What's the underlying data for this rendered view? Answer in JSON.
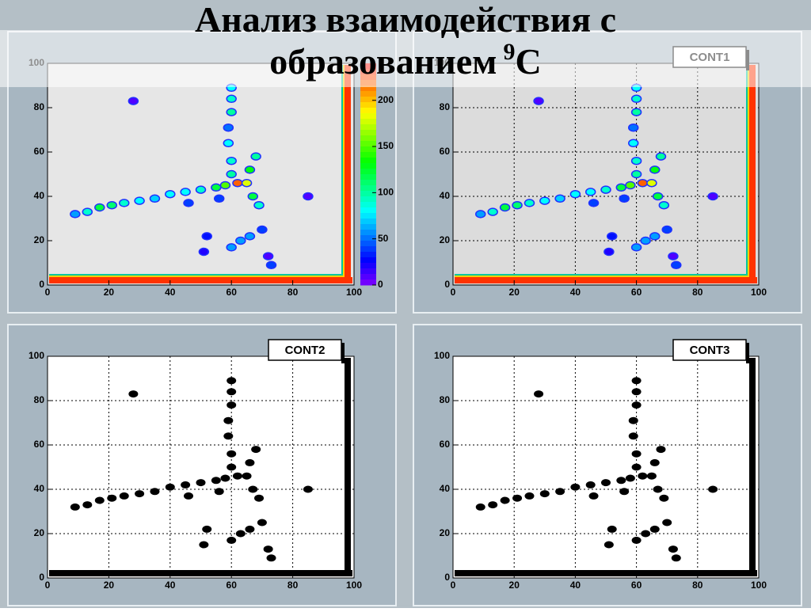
{
  "title": "Анализ взаимодействия с",
  "title_line2": "образованием",
  "title_sup": "9",
  "title_end": "C",
  "chart_data": [
    {
      "type": "contour",
      "background": "#e6e6e6",
      "grid": false,
      "palette": true,
      "xlim": [
        0,
        100
      ],
      "ylim": [
        0,
        100
      ],
      "xticks": [
        0,
        20,
        40,
        60,
        80,
        100
      ],
      "yticks": [
        0,
        20,
        40,
        60,
        80,
        100
      ],
      "zlim": [
        0,
        240
      ],
      "zticks": [
        0,
        50,
        100,
        150,
        200
      ],
      "x": [
        9,
        13,
        17,
        21,
        25,
        30,
        35,
        40,
        45,
        50,
        55,
        58,
        62,
        65,
        60,
        60,
        59,
        60,
        60,
        60,
        59,
        66,
        68,
        67,
        69,
        28,
        85,
        46,
        56,
        52,
        51,
        60,
        63,
        66,
        70,
        73,
        72
      ],
      "y": [
        32,
        33,
        35,
        36,
        37,
        38,
        39,
        41,
        42,
        43,
        44,
        45,
        46,
        46,
        50,
        56,
        64,
        78,
        84,
        89,
        71,
        52,
        58,
        40,
        36,
        83,
        40,
        37,
        39,
        22,
        15,
        17,
        20,
        22,
        25,
        9,
        13
      ],
      "values": [
        60,
        90,
        120,
        110,
        90,
        80,
        70,
        80,
        80,
        90,
        120,
        150,
        220,
        180,
        100,
        90,
        80,
        100,
        90,
        80,
        50,
        130,
        100,
        120,
        90,
        10,
        10,
        40,
        40,
        30,
        20,
        60,
        60,
        60,
        40,
        40,
        10
      ]
    },
    {
      "type": "contour",
      "label": "CONT1",
      "background": "#dcdcdc",
      "grid": true,
      "palette": true,
      "xlim": [
        0,
        100
      ],
      "ylim": [
        0,
        100
      ],
      "xticks": [
        0,
        20,
        40,
        60,
        80,
        100
      ],
      "yticks": [
        0,
        20,
        40,
        60,
        80,
        100
      ],
      "zlim": [
        0,
        240
      ],
      "x": [
        9,
        13,
        17,
        21,
        25,
        30,
        35,
        40,
        45,
        50,
        55,
        58,
        62,
        65,
        60,
        60,
        59,
        60,
        60,
        60,
        59,
        66,
        68,
        67,
        69,
        28,
        85,
        46,
        56,
        52,
        51,
        60,
        63,
        66,
        70,
        73,
        72
      ],
      "y": [
        32,
        33,
        35,
        36,
        37,
        38,
        39,
        41,
        42,
        43,
        44,
        45,
        46,
        46,
        50,
        56,
        64,
        78,
        84,
        89,
        71,
        52,
        58,
        40,
        36,
        83,
        40,
        37,
        39,
        22,
        15,
        17,
        20,
        22,
        25,
        9,
        13
      ],
      "values": [
        60,
        90,
        120,
        110,
        90,
        80,
        70,
        80,
        80,
        90,
        120,
        150,
        220,
        180,
        100,
        90,
        80,
        100,
        90,
        80,
        50,
        130,
        100,
        120,
        90,
        10,
        10,
        40,
        40,
        30,
        20,
        60,
        60,
        60,
        40,
        40,
        10
      ]
    },
    {
      "type": "contour",
      "label": "CONT2",
      "background": "#ffffff",
      "grid": true,
      "palette": false,
      "color": "#000000",
      "xlim": [
        0,
        100
      ],
      "ylim": [
        0,
        100
      ],
      "xticks": [
        0,
        20,
        40,
        60,
        80,
        100
      ],
      "yticks": [
        0,
        20,
        40,
        60,
        80,
        100
      ],
      "x": [
        9,
        13,
        17,
        21,
        25,
        30,
        35,
        40,
        45,
        50,
        55,
        58,
        62,
        65,
        60,
        60,
        59,
        60,
        60,
        60,
        59,
        66,
        68,
        67,
        69,
        28,
        85,
        46,
        56,
        52,
        51,
        60,
        63,
        66,
        70,
        73,
        72
      ],
      "y": [
        32,
        33,
        35,
        36,
        37,
        38,
        39,
        41,
        42,
        43,
        44,
        45,
        46,
        46,
        50,
        56,
        64,
        78,
        84,
        89,
        71,
        52,
        58,
        40,
        36,
        83,
        40,
        37,
        39,
        22,
        15,
        17,
        20,
        22,
        25,
        9,
        13
      ]
    },
    {
      "type": "contour",
      "label": "CONT3",
      "background": "#ffffff",
      "grid": true,
      "palette": false,
      "color": "#000000",
      "xlim": [
        0,
        100
      ],
      "ylim": [
        0,
        100
      ],
      "xticks": [
        0,
        20,
        40,
        60,
        80,
        100
      ],
      "yticks": [
        0,
        20,
        40,
        60,
        80,
        100
      ],
      "x": [
        9,
        13,
        17,
        21,
        25,
        30,
        35,
        40,
        45,
        50,
        55,
        58,
        62,
        65,
        60,
        60,
        59,
        60,
        60,
        60,
        59,
        66,
        68,
        67,
        69,
        28,
        85,
        46,
        56,
        52,
        51,
        60,
        63,
        66,
        70,
        73,
        72
      ],
      "y": [
        32,
        33,
        35,
        36,
        37,
        38,
        39,
        41,
        42,
        43,
        44,
        45,
        46,
        46,
        50,
        56,
        64,
        78,
        84,
        89,
        71,
        52,
        58,
        40,
        36,
        83,
        40,
        37,
        39,
        22,
        15,
        17,
        20,
        22,
        25,
        9,
        13
      ]
    }
  ]
}
